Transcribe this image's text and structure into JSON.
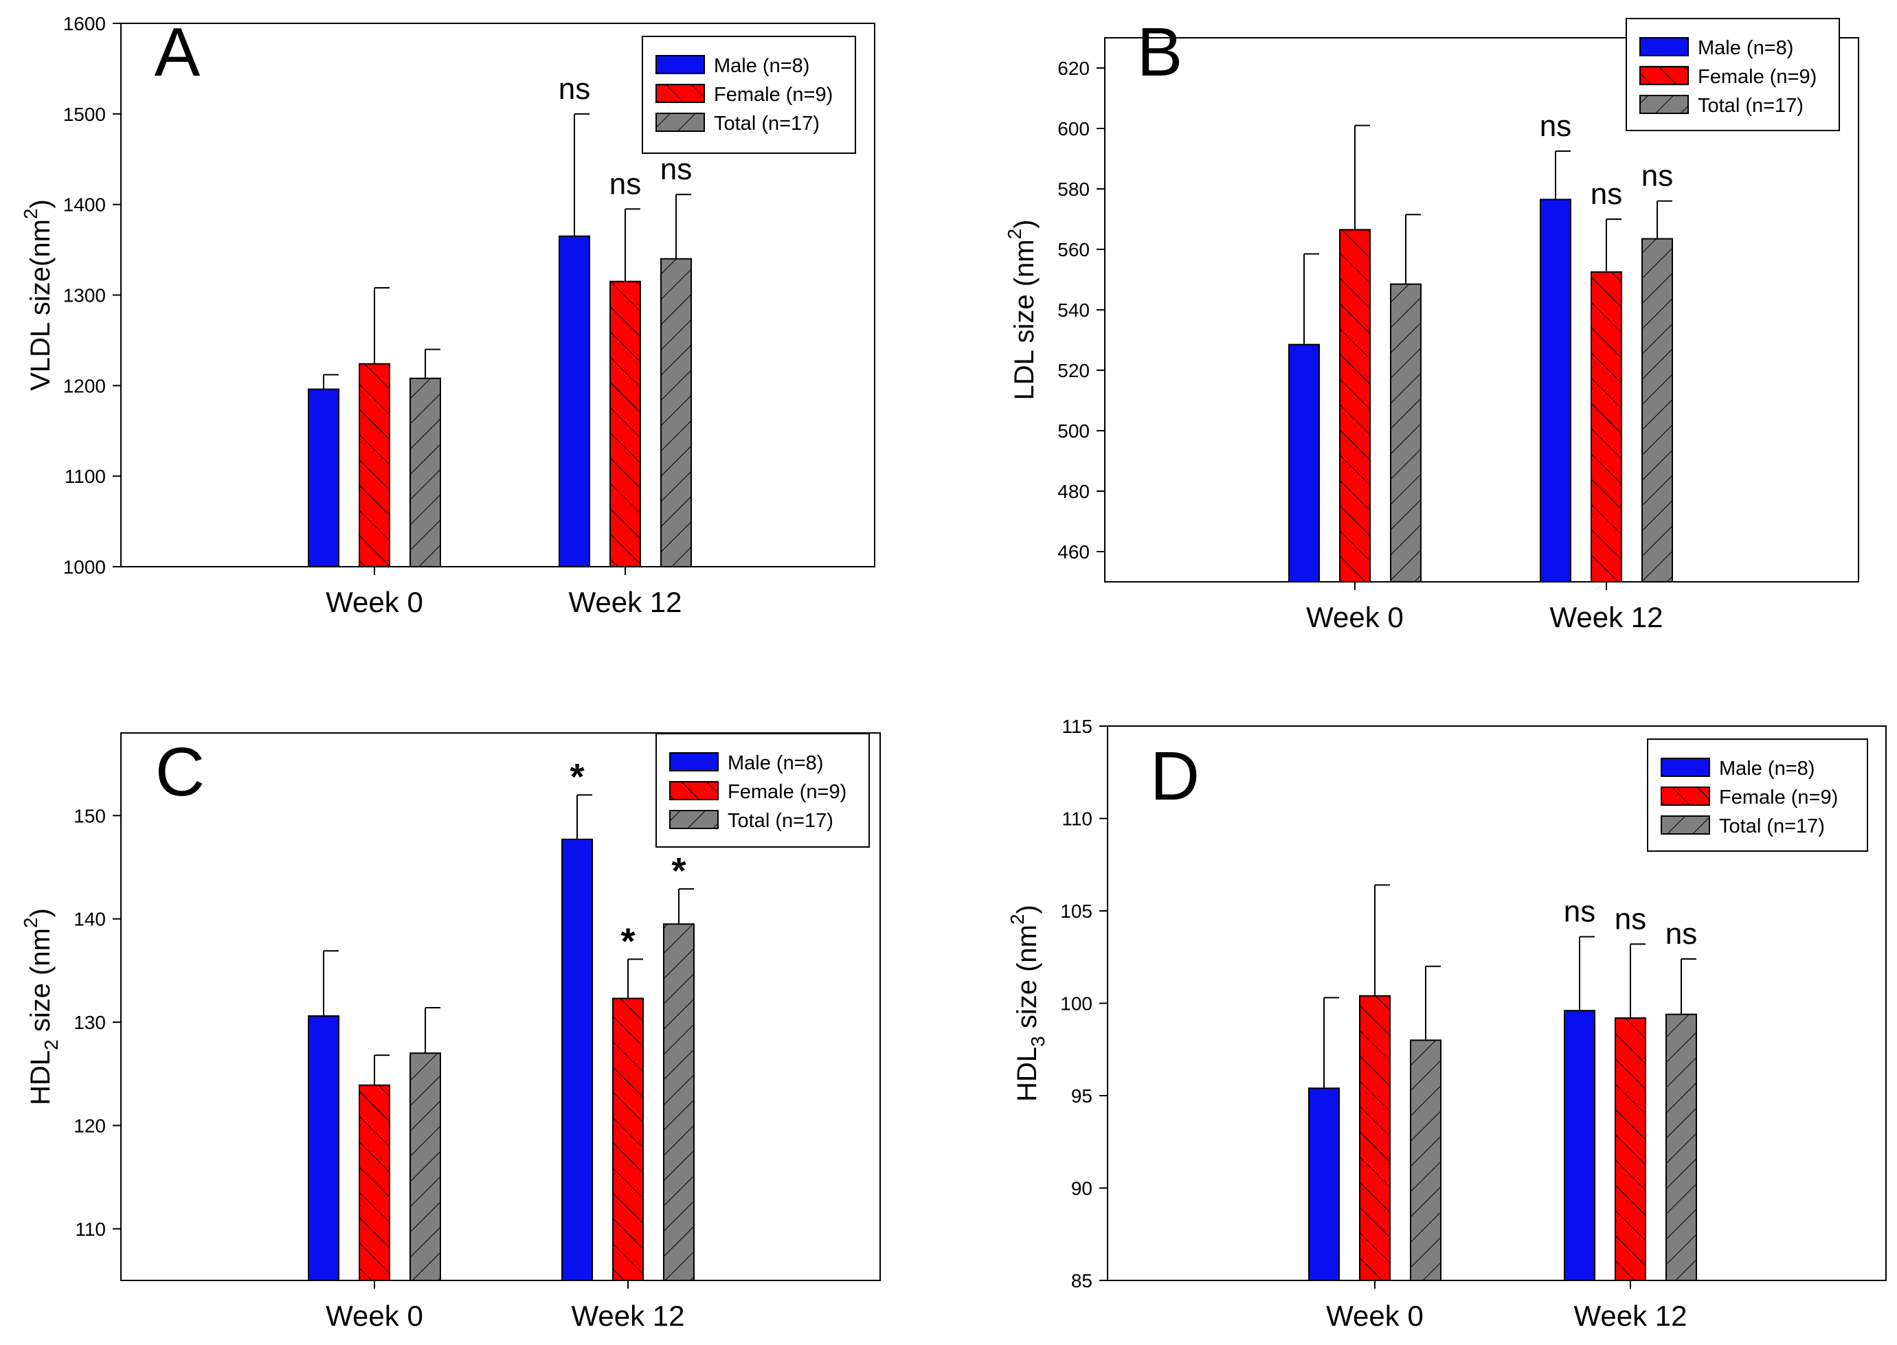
{
  "figure": {
    "description_label": "Four-panel lipoprotein particle size bar charts"
  },
  "colors": {
    "male": "#0a0ff0",
    "female": "#ff0000",
    "total": "#7f7f7f",
    "axis": "#000000"
  },
  "chart_data": [
    {
      "type": "bar",
      "panel_letter": "A",
      "ylabel_main": "VLDL size(nm",
      "ylabel_sup": "2",
      "ylabel_end": ")",
      "ylim": [
        1000,
        1600
      ],
      "yticks": [
        1000,
        1100,
        1200,
        1300,
        1400,
        1500,
        1600
      ],
      "categories": [
        "Week 0",
        "Week 12"
      ],
      "series": [
        {
          "name": "Male (n=8)",
          "key": "male",
          "values": [
            1196,
            1365
          ],
          "errors": [
            16,
            135
          ]
        },
        {
          "name": "Female (n=9)",
          "key": "female",
          "values": [
            1224,
            1315
          ],
          "errors": [
            84,
            80
          ]
        },
        {
          "name": "Total (n=17)",
          "key": "total",
          "values": [
            1208,
            1340
          ],
          "errors": [
            32,
            71
          ]
        }
      ],
      "annotations": [
        [
          "",
          "",
          ""
        ],
        [
          "ns",
          "ns",
          "ns"
        ]
      ],
      "legend": [
        "Male (n=8)",
        "Female (n=9)",
        "Total (n=17)"
      ],
      "legend_position": "top-right"
    },
    {
      "type": "bar",
      "panel_letter": "B",
      "ylabel_main": "LDL size (nm",
      "ylabel_sup": "2",
      "ylabel_end": ")",
      "ylim": [
        450,
        630
      ],
      "yticks": [
        460,
        480,
        500,
        520,
        540,
        560,
        580,
        600,
        620
      ],
      "categories": [
        "Week 0",
        "Week 12"
      ],
      "series": [
        {
          "name": "Male (n=8)",
          "key": "male",
          "values": [
            528.5,
            576.5
          ],
          "errors": [
            30,
            16
          ]
        },
        {
          "name": "Female (n=9)",
          "key": "female",
          "values": [
            566.5,
            552.5
          ],
          "errors": [
            34.5,
            17.5
          ]
        },
        {
          "name": "Total (n=17)",
          "key": "total",
          "values": [
            548.5,
            563.5
          ],
          "errors": [
            23,
            12.5
          ]
        }
      ],
      "annotations": [
        [
          "",
          "",
          ""
        ],
        [
          "ns",
          "ns",
          "ns"
        ]
      ],
      "legend": [
        "Male (n=8)",
        "Female (n=9)",
        "Total (n=17)"
      ],
      "legend_position": "top-right"
    },
    {
      "type": "bar",
      "panel_letter": "C",
      "ylabel_main": "HDL",
      "ylabel_sub": "2",
      "ylabel_mid": " size (nm",
      "ylabel_sup": "2",
      "ylabel_end": ")",
      "ylim": [
        105,
        158
      ],
      "yticks": [
        110,
        120,
        130,
        140,
        150
      ],
      "categories": [
        "Week 0",
        "Week 12"
      ],
      "series": [
        {
          "name": "Male (n=8)",
          "key": "male",
          "values": [
            130.6,
            147.7
          ],
          "errors": [
            6.3,
            4.3
          ]
        },
        {
          "name": "Female (n=9)",
          "key": "female",
          "values": [
            123.9,
            132.3
          ],
          "errors": [
            2.9,
            3.8
          ]
        },
        {
          "name": "Total (n=17)",
          "key": "total",
          "values": [
            127.0,
            139.5
          ],
          "errors": [
            4.4,
            3.4
          ]
        }
      ],
      "annotations": [
        [
          "",
          "",
          ""
        ],
        [
          "*",
          "*",
          "*"
        ]
      ],
      "legend": [
        "Male (n=8)",
        "Female (n=9)",
        "Total (n=17)"
      ],
      "legend_position": "top-right"
    },
    {
      "type": "bar",
      "panel_letter": "D",
      "ylabel_main": "HDL",
      "ylabel_sub": "3",
      "ylabel_mid": " size (nm",
      "ylabel_sup": "2",
      "ylabel_end": ")",
      "ylim": [
        85,
        115
      ],
      "yticks": [
        85,
        90,
        95,
        100,
        105,
        110,
        115
      ],
      "categories": [
        "Week 0",
        "Week 12"
      ],
      "series": [
        {
          "name": "Male (n=8)",
          "key": "male",
          "values": [
            95.4,
            99.6
          ],
          "errors": [
            4.9,
            4.0
          ]
        },
        {
          "name": "Female (n=9)",
          "key": "female",
          "values": [
            100.4,
            99.2
          ],
          "errors": [
            6.0,
            4.0
          ]
        },
        {
          "name": "Total (n=17)",
          "key": "total",
          "values": [
            98.0,
            99.4
          ],
          "errors": [
            4.0,
            3.0
          ]
        }
      ],
      "annotations": [
        [
          "",
          "",
          ""
        ],
        [
          "ns",
          "ns",
          "ns"
        ]
      ],
      "legend": [
        "Male (n=8)",
        "Female (n=9)",
        "Total (n=17)"
      ],
      "legend_position": "top-right"
    }
  ]
}
